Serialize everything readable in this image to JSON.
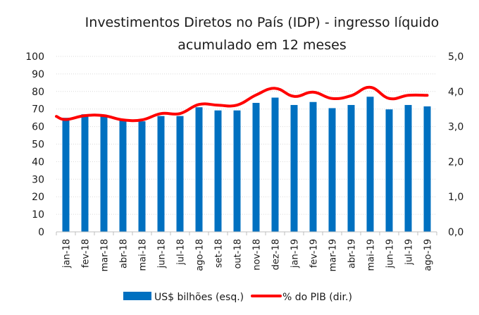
{
  "chart_data": {
    "type": "bar",
    "title": "Investimentos Diretos no País (IDP) - ingresso líquido",
    "subtitle": "acumulado em 12 meses",
    "xlabel": "",
    "ylabel": "",
    "categories": [
      "jan-18",
      "fev-18",
      "mar-18",
      "abr-18",
      "mai-18",
      "jun-18",
      "jul-18",
      "ago-18",
      "set-18",
      "out-18",
      "nov-18",
      "dez-18",
      "jan-19",
      "fev-19",
      "mar-19",
      "abr-19",
      "mai-19",
      "jun-19",
      "jul-19",
      "ago-19"
    ],
    "series": [
      {
        "name": "US$ bilhões (esq.)",
        "type": "bar",
        "axis": "left",
        "color": "#0070C0",
        "values": [
          65.0,
          67.0,
          66.5,
          63.5,
          63.0,
          66.0,
          66.0,
          71.0,
          69.2,
          69.2,
          73.5,
          76.5,
          72.3,
          74.0,
          70.5,
          72.3,
          77.0,
          69.8,
          72.3,
          71.5
        ]
      },
      {
        "name": "% do PIB (dir.)",
        "type": "line",
        "axis": "right",
        "color": "#FF0000",
        "start_value": 3.29,
        "values": [
          3.2,
          3.31,
          3.31,
          3.19,
          3.19,
          3.37,
          3.37,
          3.63,
          3.61,
          3.61,
          3.9,
          4.09,
          3.86,
          3.98,
          3.8,
          3.88,
          4.12,
          3.8,
          3.89,
          3.89
        ]
      }
    ],
    "y_left": {
      "range": [
        0,
        100
      ],
      "ticks": [
        0,
        10,
        20,
        30,
        40,
        50,
        60,
        70,
        80,
        90,
        100
      ],
      "tick_labels": [
        "0",
        "10",
        "20",
        "30",
        "40",
        "50",
        "60",
        "70",
        "80",
        "90",
        "100"
      ]
    },
    "y_right": {
      "range": [
        0,
        5
      ],
      "ticks": [
        0,
        1,
        2,
        3,
        4,
        5
      ],
      "tick_labels": [
        "0,0",
        "1,0",
        "2,0",
        "3,0",
        "4,0",
        "5,0"
      ]
    },
    "grid": true,
    "legend": {
      "position": "bottom",
      "entries": [
        "US$ bilhões (esq.)",
        "% do PIB (dir.)"
      ]
    }
  }
}
